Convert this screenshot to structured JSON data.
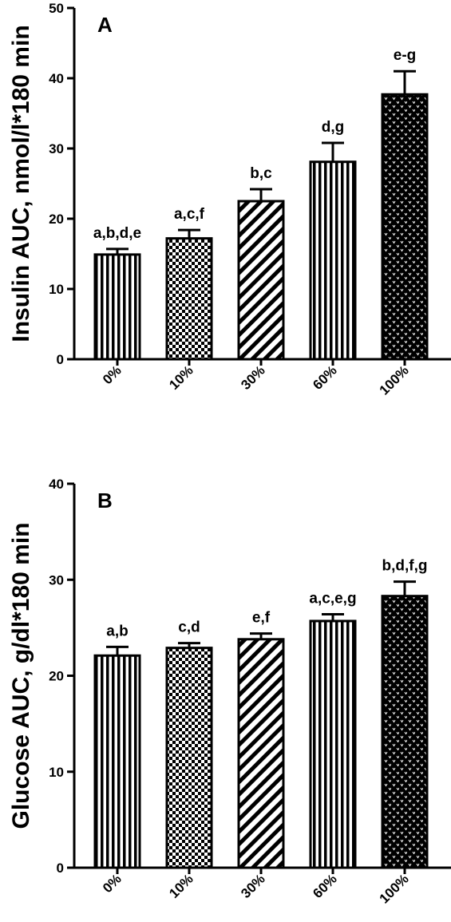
{
  "chart_data": [
    {
      "type": "bar",
      "panel_label": "A",
      "ylabel": "Insulin AUC, nmol/l*180 min",
      "ylim": [
        0,
        50
      ],
      "yticks": [
        0,
        10,
        20,
        30,
        40,
        50
      ],
      "categories": [
        "0%",
        "10%",
        "30%",
        "60%",
        "100%"
      ],
      "values": [
        14.9,
        17.2,
        22.5,
        28.1,
        37.7
      ],
      "errors": [
        0.8,
        1.2,
        1.7,
        2.7,
        3.3
      ],
      "annotations": [
        "a,b,d,e",
        "a,c,f",
        "b,c",
        "d,g",
        "e-g"
      ],
      "patterns": [
        "vertical-stripes",
        "checker",
        "diagonal-stripes",
        "vertical-stripes",
        "dots"
      ]
    },
    {
      "type": "bar",
      "panel_label": "B",
      "ylabel": "Glucose AUC, g/dl*180 min",
      "ylim": [
        0,
        40
      ],
      "yticks": [
        0,
        10,
        20,
        30,
        40
      ],
      "categories": [
        "0%",
        "10%",
        "30%",
        "60%",
        "100%"
      ],
      "values": [
        22.1,
        22.9,
        23.8,
        25.7,
        28.3
      ],
      "errors": [
        0.9,
        0.5,
        0.6,
        0.7,
        1.5
      ],
      "annotations": [
        "a,b",
        "c,d",
        "e,f",
        "a,c,e,g",
        "b,d,f,g"
      ],
      "patterns": [
        "vertical-stripes",
        "checker",
        "diagonal-stripes",
        "vertical-stripes",
        "dots"
      ]
    }
  ]
}
